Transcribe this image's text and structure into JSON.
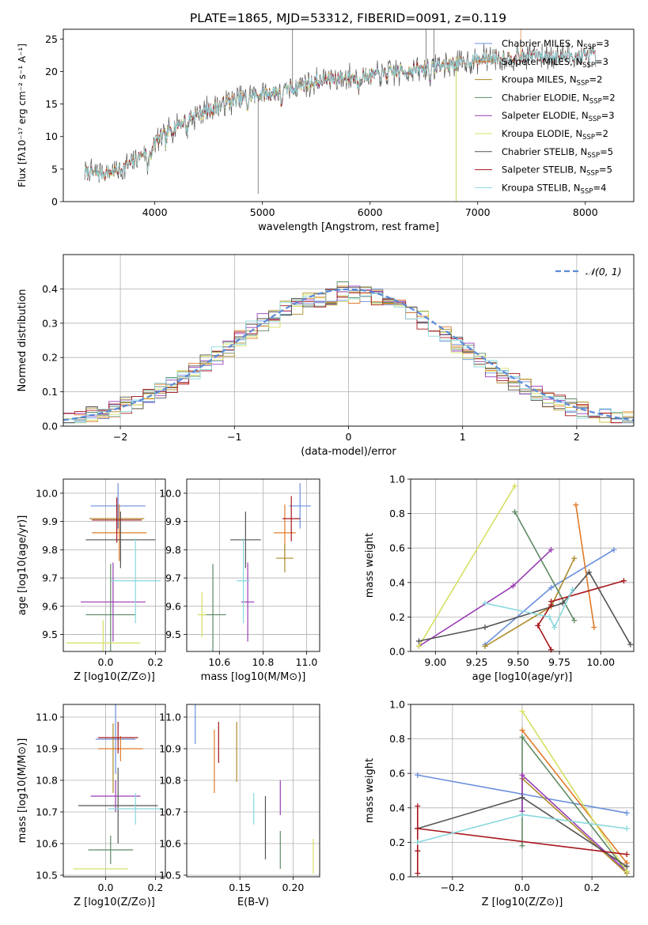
{
  "figure_title": "PLATE=1865, MJD=53312, FIBERID=0091, z=0.119",
  "model_colors": [
    "#6a8fdc",
    "#e07b2a",
    "#ad8c2a",
    "#5e8a64",
    "#9a3cb4",
    "#d6e060",
    "#555555",
    "#a8161c",
    "#88d8de"
  ],
  "chart_data": [
    {
      "id": "spectrum",
      "type": "line",
      "xlabel": "wavelength [Angstrom, rest frame]",
      "ylabel": "Flux [fλ10⁻¹⁷ erg cm⁻² s⁻¹ A⁻¹]",
      "xlim": [
        3150,
        8450
      ],
      "ylim": [
        0,
        26.5
      ],
      "xticks": [
        4000,
        5000,
        6000,
        7000,
        8000
      ],
      "yticks": [
        0,
        5,
        10,
        15,
        20,
        25
      ],
      "legend_position": "right",
      "legend": [
        "Chabrier MILES, N_SSP=3",
        "Salpeter MILES, N_SSP=3",
        "Kroupa MILES, N_SSP=2",
        "Chabrier ELODIE, N_SSP=2",
        "Salpeter ELODIE, N_SSP=3",
        "Kroupa ELODIE, N_SSP=2",
        "Chabrier STELIB, N_SSP=5",
        "Salpeter STELIB, N_SSP=5",
        "Kroupa STELIB, N_SSP=4"
      ],
      "continuum": {
        "x": [
          3350,
          3500,
          3650,
          3800,
          3950,
          4100,
          4300,
          4500,
          4700,
          4900,
          5100,
          5300,
          5500,
          5700,
          6000,
          6300,
          6500,
          6700,
          6900,
          7100,
          7300,
          7500,
          7700,
          7900,
          8100
        ],
        "y": [
          4.5,
          4.3,
          4.8,
          6.0,
          8.5,
          10.5,
          12.8,
          14.0,
          15.5,
          16.2,
          16.8,
          17.6,
          18.5,
          19.0,
          19.4,
          20.0,
          20.5,
          21.0,
          21.6,
          22.0,
          22.2,
          22.4,
          22.3,
          22.4,
          22.3
        ]
      },
      "model_coverage": [
        {
          "series": "Chabrier MILES",
          "x": [
            3350,
            7400
          ]
        },
        {
          "series": "Salpeter MILES",
          "x": [
            3350,
            7400
          ]
        },
        {
          "series": "Kroupa MILES",
          "x": [
            3350,
            7400
          ]
        },
        {
          "series": "Chabrier ELODIE",
          "x": [
            3900,
            6800
          ]
        },
        {
          "series": "Salpeter ELODIE",
          "x": [
            3900,
            6800
          ]
        },
        {
          "series": "Kroupa ELODIE",
          "x": [
            3900,
            6800
          ]
        },
        {
          "series": "Chabrier STELIB",
          "x": [
            3350,
            8100
          ]
        },
        {
          "series": "Salpeter STELIB",
          "x": [
            3350,
            8100
          ]
        },
        {
          "series": "Kroupa STELIB",
          "x": [
            3350,
            8100
          ]
        }
      ]
    },
    {
      "id": "residuals",
      "type": "line",
      "xlabel": "(data-model)/error",
      "ylabel": "Normed distribution",
      "xlim": [
        -2.5,
        2.5
      ],
      "ylim": [
        0,
        0.5
      ],
      "xticks": [
        -2,
        -1,
        0,
        1,
        2
      ],
      "yticks": [
        0.0,
        0.1,
        0.2,
        0.3,
        0.4
      ],
      "grid": true,
      "legend_position": "top-right",
      "legend": [
        "𝒩(0, 1)"
      ],
      "normal_curve": {
        "mean": 0,
        "sigma": 1
      }
    },
    {
      "id": "age-vs-Z",
      "type": "scatter",
      "xlabel": "Z [log10(Z/Z⊙)]",
      "ylabel": "age [log10(age/yr)]",
      "xlim": [
        -0.17,
        0.24
      ],
      "ylim": [
        9.44,
        10.05
      ],
      "xticks": [
        0.0,
        0.2
      ],
      "yticks": [
        9.5,
        9.6,
        9.7,
        9.8,
        9.9,
        10.0
      ],
      "grid": true,
      "points": [
        {
          "x": 0.05,
          "y": 9.955,
          "xerr": 0.11,
          "yerr": 0.08
        },
        {
          "x": 0.055,
          "y": 9.86,
          "xerr": 0.11,
          "yerr": 0.1
        },
        {
          "x": 0.045,
          "y": 9.91,
          "xerr": 0.11,
          "yerr": 0.05
        },
        {
          "x": 0.02,
          "y": 9.57,
          "xerr": 0.1,
          "yerr": 0.18
        },
        {
          "x": 0.03,
          "y": 9.615,
          "xerr": 0.13,
          "yerr": 0.14
        },
        {
          "x": -0.01,
          "y": 9.47,
          "xerr": 0.15,
          "yerr": 0.08
        },
        {
          "x": 0.06,
          "y": 9.835,
          "xerr": 0.14,
          "yerr": 0.1
        },
        {
          "x": 0.045,
          "y": 9.905,
          "xerr": 0.1,
          "yerr": 0.08
        },
        {
          "x": 0.12,
          "y": 9.69,
          "xerr": 0.1,
          "yerr": 0.15
        }
      ]
    },
    {
      "id": "age-vs-mass",
      "type": "scatter",
      "xlabel": "mass [log10(M/M⊙)]",
      "ylabel": "",
      "xlim": [
        10.45,
        11.06
      ],
      "ylim": [
        9.44,
        10.05
      ],
      "xticks": [
        10.6,
        10.8,
        11.0
      ],
      "yticks": [
        9.5,
        9.6,
        9.7,
        9.8,
        9.9,
        10.0
      ],
      "grid": true,
      "points": [
        {
          "x": 10.97,
          "y": 9.955,
          "xerr": 0.05,
          "yerr": 0.08
        },
        {
          "x": 10.9,
          "y": 9.86,
          "xerr": 0.05,
          "yerr": 0.1
        },
        {
          "x": 10.9,
          "y": 9.77,
          "xerr": 0.04,
          "yerr": 0.05
        },
        {
          "x": 10.57,
          "y": 9.57,
          "xerr": 0.06,
          "yerr": 0.18
        },
        {
          "x": 10.73,
          "y": 9.615,
          "xerr": 0.03,
          "yerr": 0.14
        },
        {
          "x": 10.52,
          "y": 9.57,
          "xerr": 0.02,
          "yerr": 0.08
        },
        {
          "x": 10.72,
          "y": 9.835,
          "xerr": 0.07,
          "yerr": 0.1
        },
        {
          "x": 10.93,
          "y": 9.91,
          "xerr": 0.04,
          "yerr": 0.08
        },
        {
          "x": 10.71,
          "y": 9.69,
          "xerr": 0.03,
          "yerr": 0.15
        }
      ]
    },
    {
      "id": "weight-vs-age",
      "type": "line",
      "xlabel": "age [log10(age/yr)]",
      "ylabel": "mass weight",
      "xlim": [
        8.85,
        10.2
      ],
      "ylim": [
        0,
        1.0
      ],
      "xticks": [
        9.0,
        9.25,
        9.5,
        9.75,
        10.0
      ],
      "yticks": [
        0.0,
        0.2,
        0.4,
        0.6,
        0.8,
        1.0
      ],
      "grid": true,
      "series": [
        {
          "x": [
            9.3,
            9.7,
            10.08
          ],
          "y": [
            0.04,
            0.37,
            0.59
          ]
        },
        {
          "x": [
            9.96,
            9.85
          ],
          "y": [
            0.14,
            0.85
          ]
        },
        {
          "x": [
            9.3,
            9.7,
            9.84
          ],
          "y": [
            0.03,
            0.26,
            0.54
          ]
        },
        {
          "x": [
            9.48,
            9.84
          ],
          "y": [
            0.81,
            0.18
          ]
        },
        {
          "x": [
            8.9,
            9.47,
            9.7
          ],
          "y": [
            0.03,
            0.38,
            0.59
          ]
        },
        {
          "x": [
            8.9,
            9.48
          ],
          "y": [
            0.03,
            0.96
          ]
        },
        {
          "x": [
            8.9,
            9.3,
            9.77,
            9.93,
            10.18
          ],
          "y": [
            0.06,
            0.14,
            0.28,
            0.46,
            0.04
          ]
        },
        {
          "x": [
            9.7,
            9.62,
            9.7,
            9.7,
            10.14
          ],
          "y": [
            0.01,
            0.15,
            0.27,
            0.29,
            0.41
          ]
        },
        {
          "x": [
            9.3,
            9.69,
            9.72,
            9.83
          ],
          "y": [
            0.28,
            0.2,
            0.14,
            0.36
          ]
        }
      ]
    },
    {
      "id": "mass-vs-Z",
      "type": "scatter",
      "xlabel": "Z [log10(Z/Z⊙)]",
      "ylabel": "mass [log10(M/M⊙)]",
      "xlim": [
        -0.17,
        0.24
      ],
      "ylim": [
        10.495,
        11.04
      ],
      "xticks": [
        0.0,
        0.2
      ],
      "yticks": [
        10.5,
        10.6,
        10.7,
        10.8,
        10.9,
        11.0
      ],
      "grid": true,
      "points": [
        {
          "x": 0.04,
          "y": 10.93,
          "xerr": 0.08,
          "yerr": 0.11
        },
        {
          "x": 0.06,
          "y": 10.9,
          "xerr": 0.09,
          "yerr": 0.04
        },
        {
          "x": 0.03,
          "y": 10.87,
          "xerr": 0.0,
          "yerr": 0.11
        },
        {
          "x": 0.02,
          "y": 10.58,
          "xerr": 0.09,
          "yerr": 0.045
        },
        {
          "x": 0.04,
          "y": 10.75,
          "xerr": 0.1,
          "yerr": 0.05
        },
        {
          "x": -0.02,
          "y": 10.52,
          "xerr": 0.11,
          "yerr": 0.0
        },
        {
          "x": 0.05,
          "y": 10.72,
          "xerr": 0.16,
          "yerr": 0.12
        },
        {
          "x": 0.05,
          "y": 10.935,
          "xerr": 0.08,
          "yerr": 0.05
        },
        {
          "x": 0.12,
          "y": 10.71,
          "xerr": 0.11,
          "yerr": 0.05
        }
      ]
    },
    {
      "id": "mass-vs-EBV",
      "type": "scatter",
      "xlabel": "E(B-V)",
      "ylabel": "",
      "xlim": [
        0.1,
        0.225
      ],
      "ylim": [
        10.495,
        11.04
      ],
      "xticks": [
        0.15,
        0.2
      ],
      "yticks": [
        10.5,
        10.6,
        10.7,
        10.8,
        10.9,
        11.0
      ],
      "grid": true,
      "points": [
        {
          "x": 0.108,
          "y": 10.98,
          "yerr": 0.065
        },
        {
          "x": 0.126,
          "y": 10.86,
          "yerr": 0.1
        },
        {
          "x": 0.147,
          "y": 10.89,
          "yerr": 0.095
        },
        {
          "x": 0.188,
          "y": 10.58,
          "yerr": 0.06
        },
        {
          "x": 0.188,
          "y": 10.745,
          "yerr": 0.055
        },
        {
          "x": 0.219,
          "y": 10.56,
          "yerr": 0.055
        },
        {
          "x": 0.174,
          "y": 10.65,
          "yerr": 0.1
        },
        {
          "x": 0.13,
          "y": 10.92,
          "yerr": 0.065
        },
        {
          "x": 0.163,
          "y": 10.71,
          "yerr": 0.05
        }
      ]
    },
    {
      "id": "weight-vs-Z",
      "type": "line",
      "xlabel": "Z [log10(Z/Z⊙)]",
      "ylabel": "mass weight",
      "xlim": [
        -0.32,
        0.32
      ],
      "ylim": [
        0,
        1.0
      ],
      "xticks": [
        -0.2,
        0.0,
        0.2
      ],
      "yticks": [
        0.0,
        0.2,
        0.4,
        0.6,
        0.8,
        1.0
      ],
      "grid": true,
      "series": [
        {
          "x": [
            -0.3,
            0.0,
            0.3
          ],
          "y": [
            0.59,
            0.48,
            0.37
          ]
        },
        {
          "x": [
            0.0,
            0.3
          ],
          "y": [
            0.85,
            0.08
          ]
        },
        {
          "x": [
            0.0,
            0.3
          ],
          "y": [
            0.57,
            0.02
          ]
        },
        {
          "x": [
            0.0,
            0.0,
            0.3
          ],
          "y": [
            0.18,
            0.81,
            0.03
          ]
        },
        {
          "x": [
            0.0,
            0.0,
            0.3
          ],
          "y": [
            0.38,
            0.59,
            0.03
          ]
        },
        {
          "x": [
            0.0,
            0.3
          ],
          "y": [
            0.96,
            0.03
          ]
        },
        {
          "x": [
            -0.3,
            0.0,
            0.3
          ],
          "y": [
            0.28,
            0.46,
            0.06
          ]
        },
        {
          "x": [
            -0.3,
            -0.3,
            -0.3,
            -0.3,
            0.3
          ],
          "y": [
            0.41,
            0.02,
            0.15,
            0.28,
            0.13
          ]
        },
        {
          "x": [
            -0.3,
            0.0,
            0.3
          ],
          "y": [
            0.2,
            0.36,
            0.28
          ]
        }
      ]
    }
  ]
}
